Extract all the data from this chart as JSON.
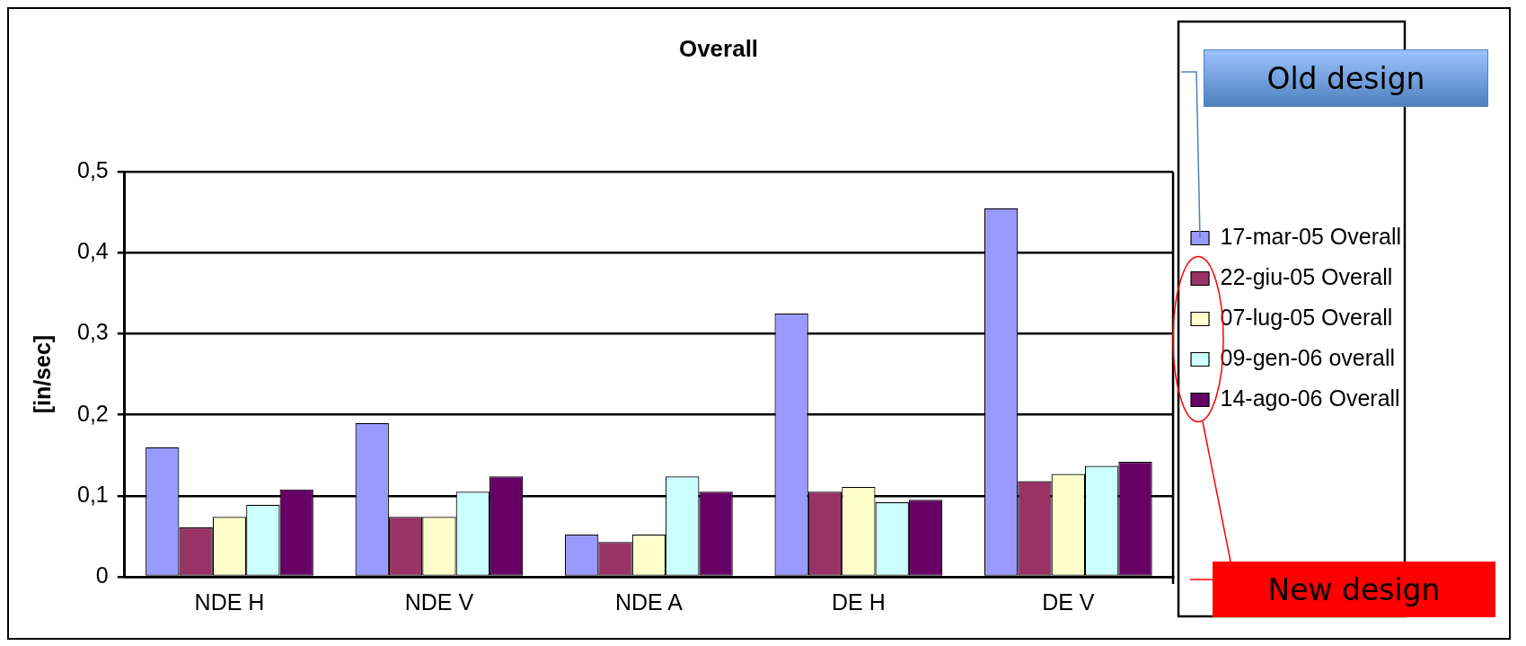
{
  "chart_data": {
    "type": "bar",
    "title": "Overall",
    "ylabel": "[in/sec]",
    "categories": [
      "NDE H",
      "NDE V",
      "NDE A",
      "DE H",
      "DE V"
    ],
    "series": [
      {
        "name": "17-mar-05 Overall",
        "color": "#9999ff",
        "values": [
          0.16,
          0.19,
          0.052,
          0.325,
          0.455
        ]
      },
      {
        "name": "22-giu-05 Overall",
        "color": "#993366",
        "values": [
          0.061,
          0.074,
          0.043,
          0.105,
          0.118
        ]
      },
      {
        "name": "07-lug-05 Overall",
        "color": "#ffffcc",
        "values": [
          0.074,
          0.074,
          0.052,
          0.111,
          0.127
        ]
      },
      {
        "name": "09-gen-06 overall",
        "color": "#ccffff",
        "values": [
          0.089,
          0.105,
          0.124,
          0.092,
          0.137
        ]
      },
      {
        "name": "14-ago-06 Overall",
        "color": "#660066",
        "values": [
          0.108,
          0.124,
          0.105,
          0.095,
          0.142
        ]
      }
    ],
    "ylim": [
      0,
      0.5
    ],
    "yticks": [
      0,
      {
        "value": 0.1,
        "label": "0,1"
      },
      {
        "value": 0.2,
        "label": "0,2"
      },
      {
        "value": 0.3,
        "label": "0,3"
      },
      {
        "value": 0.4,
        "label": "0,4"
      },
      {
        "value": 0.5,
        "label": "0,5"
      }
    ],
    "grid": "y",
    "legend": "right",
    "annotations": [
      "Old design",
      "New design"
    ]
  }
}
